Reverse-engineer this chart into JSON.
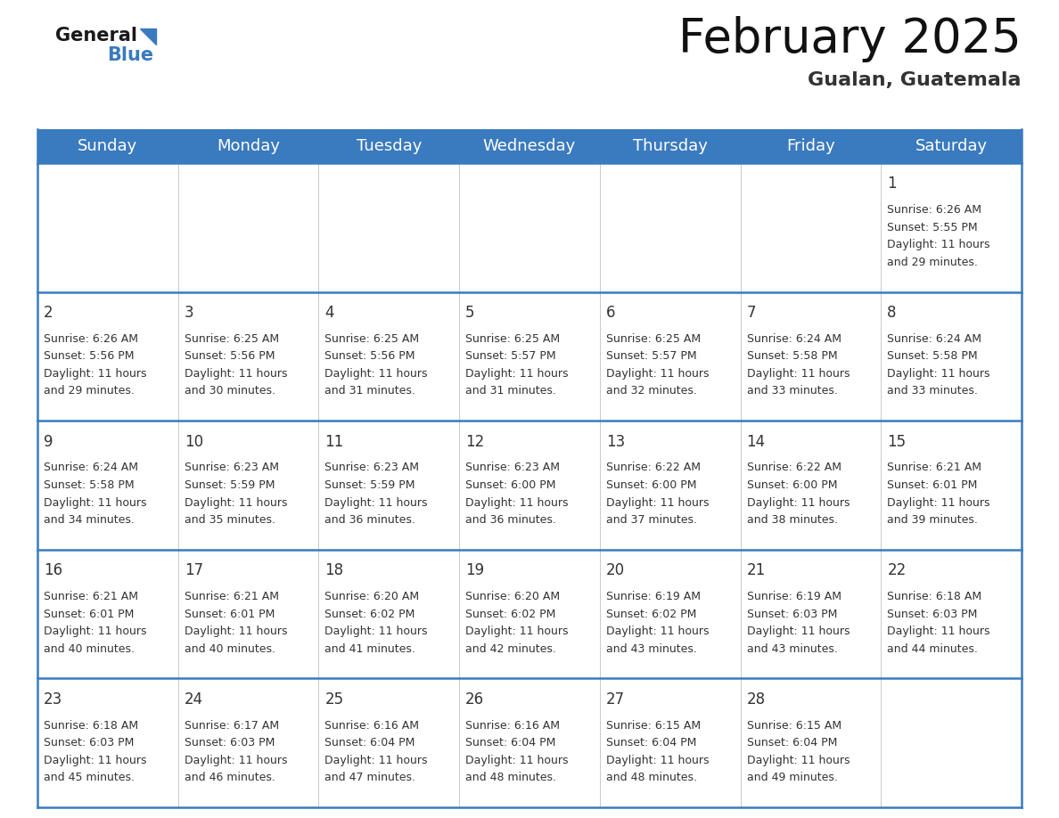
{
  "title": "February 2025",
  "subtitle": "Gualan, Guatemala",
  "header_color": "#3a7abf",
  "header_text_color": "#ffffff",
  "day_names": [
    "Sunday",
    "Monday",
    "Tuesday",
    "Wednesday",
    "Thursday",
    "Friday",
    "Saturday"
  ],
  "title_fontsize": 38,
  "subtitle_fontsize": 16,
  "header_fontsize": 13,
  "cell_num_fontsize": 12,
  "cell_text_fontsize": 9,
  "background_color": "#ffffff",
  "cell_bg_color": "#ffffff",
  "border_color": "#3a7abf",
  "text_color": "#333333",
  "days": [
    {
      "day": 1,
      "col": 6,
      "row": 0,
      "sunrise": "6:26 AM",
      "sunset": "5:55 PM",
      "daylight_hours": 11,
      "daylight_minutes": 29
    },
    {
      "day": 2,
      "col": 0,
      "row": 1,
      "sunrise": "6:26 AM",
      "sunset": "5:56 PM",
      "daylight_hours": 11,
      "daylight_minutes": 29
    },
    {
      "day": 3,
      "col": 1,
      "row": 1,
      "sunrise": "6:25 AM",
      "sunset": "5:56 PM",
      "daylight_hours": 11,
      "daylight_minutes": 30
    },
    {
      "day": 4,
      "col": 2,
      "row": 1,
      "sunrise": "6:25 AM",
      "sunset": "5:56 PM",
      "daylight_hours": 11,
      "daylight_minutes": 31
    },
    {
      "day": 5,
      "col": 3,
      "row": 1,
      "sunrise": "6:25 AM",
      "sunset": "5:57 PM",
      "daylight_hours": 11,
      "daylight_minutes": 31
    },
    {
      "day": 6,
      "col": 4,
      "row": 1,
      "sunrise": "6:25 AM",
      "sunset": "5:57 PM",
      "daylight_hours": 11,
      "daylight_minutes": 32
    },
    {
      "day": 7,
      "col": 5,
      "row": 1,
      "sunrise": "6:24 AM",
      "sunset": "5:58 PM",
      "daylight_hours": 11,
      "daylight_minutes": 33
    },
    {
      "day": 8,
      "col": 6,
      "row": 1,
      "sunrise": "6:24 AM",
      "sunset": "5:58 PM",
      "daylight_hours": 11,
      "daylight_minutes": 33
    },
    {
      "day": 9,
      "col": 0,
      "row": 2,
      "sunrise": "6:24 AM",
      "sunset": "5:58 PM",
      "daylight_hours": 11,
      "daylight_minutes": 34
    },
    {
      "day": 10,
      "col": 1,
      "row": 2,
      "sunrise": "6:23 AM",
      "sunset": "5:59 PM",
      "daylight_hours": 11,
      "daylight_minutes": 35
    },
    {
      "day": 11,
      "col": 2,
      "row": 2,
      "sunrise": "6:23 AM",
      "sunset": "5:59 PM",
      "daylight_hours": 11,
      "daylight_minutes": 36
    },
    {
      "day": 12,
      "col": 3,
      "row": 2,
      "sunrise": "6:23 AM",
      "sunset": "6:00 PM",
      "daylight_hours": 11,
      "daylight_minutes": 36
    },
    {
      "day": 13,
      "col": 4,
      "row": 2,
      "sunrise": "6:22 AM",
      "sunset": "6:00 PM",
      "daylight_hours": 11,
      "daylight_minutes": 37
    },
    {
      "day": 14,
      "col": 5,
      "row": 2,
      "sunrise": "6:22 AM",
      "sunset": "6:00 PM",
      "daylight_hours": 11,
      "daylight_minutes": 38
    },
    {
      "day": 15,
      "col": 6,
      "row": 2,
      "sunrise": "6:21 AM",
      "sunset": "6:01 PM",
      "daylight_hours": 11,
      "daylight_minutes": 39
    },
    {
      "day": 16,
      "col": 0,
      "row": 3,
      "sunrise": "6:21 AM",
      "sunset": "6:01 PM",
      "daylight_hours": 11,
      "daylight_minutes": 40
    },
    {
      "day": 17,
      "col": 1,
      "row": 3,
      "sunrise": "6:21 AM",
      "sunset": "6:01 PM",
      "daylight_hours": 11,
      "daylight_minutes": 40
    },
    {
      "day": 18,
      "col": 2,
      "row": 3,
      "sunrise": "6:20 AM",
      "sunset": "6:02 PM",
      "daylight_hours": 11,
      "daylight_minutes": 41
    },
    {
      "day": 19,
      "col": 3,
      "row": 3,
      "sunrise": "6:20 AM",
      "sunset": "6:02 PM",
      "daylight_hours": 11,
      "daylight_minutes": 42
    },
    {
      "day": 20,
      "col": 4,
      "row": 3,
      "sunrise": "6:19 AM",
      "sunset": "6:02 PM",
      "daylight_hours": 11,
      "daylight_minutes": 43
    },
    {
      "day": 21,
      "col": 5,
      "row": 3,
      "sunrise": "6:19 AM",
      "sunset": "6:03 PM",
      "daylight_hours": 11,
      "daylight_minutes": 43
    },
    {
      "day": 22,
      "col": 6,
      "row": 3,
      "sunrise": "6:18 AM",
      "sunset": "6:03 PM",
      "daylight_hours": 11,
      "daylight_minutes": 44
    },
    {
      "day": 23,
      "col": 0,
      "row": 4,
      "sunrise": "6:18 AM",
      "sunset": "6:03 PM",
      "daylight_hours": 11,
      "daylight_minutes": 45
    },
    {
      "day": 24,
      "col": 1,
      "row": 4,
      "sunrise": "6:17 AM",
      "sunset": "6:03 PM",
      "daylight_hours": 11,
      "daylight_minutes": 46
    },
    {
      "day": 25,
      "col": 2,
      "row": 4,
      "sunrise": "6:16 AM",
      "sunset": "6:04 PM",
      "daylight_hours": 11,
      "daylight_minutes": 47
    },
    {
      "day": 26,
      "col": 3,
      "row": 4,
      "sunrise": "6:16 AM",
      "sunset": "6:04 PM",
      "daylight_hours": 11,
      "daylight_minutes": 48
    },
    {
      "day": 27,
      "col": 4,
      "row": 4,
      "sunrise": "6:15 AM",
      "sunset": "6:04 PM",
      "daylight_hours": 11,
      "daylight_minutes": 48
    },
    {
      "day": 28,
      "col": 5,
      "row": 4,
      "sunrise": "6:15 AM",
      "sunset": "6:04 PM",
      "daylight_hours": 11,
      "daylight_minutes": 49
    }
  ]
}
